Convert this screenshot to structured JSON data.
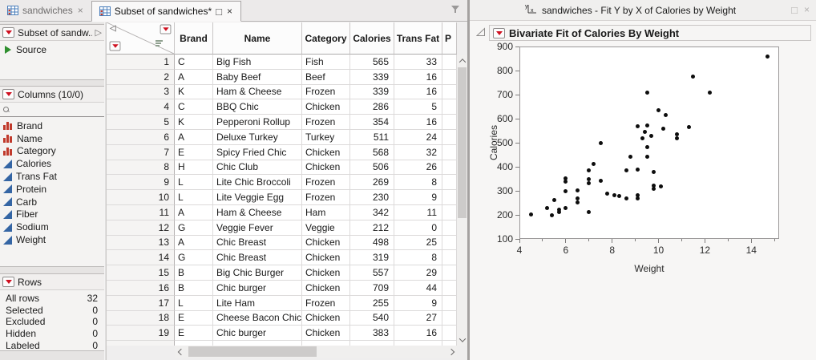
{
  "glyphs": {
    "close": "×",
    "maximize": "□",
    "panel_expand": "▷",
    "corner_collapse": "◁"
  },
  "left_window": {
    "tabs": [
      {
        "label": "sandwiches",
        "active": false
      },
      {
        "label": "Subset of sandwiches*",
        "active": true
      }
    ],
    "panels": {
      "table_panel": {
        "title": "Subset of sandw...",
        "source_label": "Source"
      },
      "columns_panel": {
        "title": "Columns (10/0)",
        "search_placeholder": "",
        "columns": [
          {
            "name": "Brand",
            "type": "nominal"
          },
          {
            "name": "Name",
            "type": "nominal"
          },
          {
            "name": "Category",
            "type": "nominal"
          },
          {
            "name": "Calories",
            "type": "continuous"
          },
          {
            "name": "Trans Fat",
            "type": "continuous"
          },
          {
            "name": "Protein",
            "type": "continuous"
          },
          {
            "name": "Carb",
            "type": "continuous"
          },
          {
            "name": "Fiber",
            "type": "continuous"
          },
          {
            "name": "Sodium",
            "type": "continuous"
          },
          {
            "name": "Weight",
            "type": "continuous"
          }
        ]
      },
      "rows_panel": {
        "title": "Rows",
        "stats": [
          {
            "label": "All rows",
            "value": "32"
          },
          {
            "label": "Selected",
            "value": "0"
          },
          {
            "label": "Excluded",
            "value": "0"
          },
          {
            "label": "Hidden",
            "value": "0"
          },
          {
            "label": "Labeled",
            "value": "0"
          }
        ]
      }
    },
    "table": {
      "headers": [
        "Brand",
        "Name",
        "Category",
        "Calories",
        "Trans Fat",
        "P"
      ],
      "rows": [
        [
          "1",
          "C",
          "Big Fish",
          "Fish",
          "565",
          "33"
        ],
        [
          "2",
          "A",
          "Baby Beef",
          "Beef",
          "339",
          "16"
        ],
        [
          "3",
          "K",
          "Ham & Cheese",
          "Frozen",
          "339",
          "16"
        ],
        [
          "4",
          "C",
          "BBQ Chic",
          "Chicken",
          "286",
          "5"
        ],
        [
          "5",
          "K",
          "Pepperoni Rollup",
          "Frozen",
          "354",
          "16"
        ],
        [
          "6",
          "A",
          "Deluxe Turkey",
          "Turkey",
          "511",
          "24"
        ],
        [
          "7",
          "E",
          "Spicy Fried Chic",
          "Chicken",
          "568",
          "32"
        ],
        [
          "8",
          "H",
          "Chic Club",
          "Chicken",
          "506",
          "26"
        ],
        [
          "9",
          "L",
          "Lite Chic Broccoli",
          "Frozen",
          "269",
          "8"
        ],
        [
          "10",
          "L",
          "Lite Veggie Egg",
          "Frozen",
          "230",
          "9"
        ],
        [
          "11",
          "A",
          "Ham & Cheese",
          "Ham",
          "342",
          "11"
        ],
        [
          "12",
          "G",
          "Veggie Fever",
          "Veggie",
          "212",
          "0"
        ],
        [
          "13",
          "A",
          "Chic Breast",
          "Chicken",
          "498",
          "25"
        ],
        [
          "14",
          "G",
          "Chic Breast",
          "Chicken",
          "319",
          "8"
        ],
        [
          "15",
          "B",
          "Big Chic Burger",
          "Chicken",
          "557",
          "29"
        ],
        [
          "16",
          "B",
          "Chic burger",
          "Chicken",
          "709",
          "44"
        ],
        [
          "17",
          "L",
          "Lite Ham",
          "Frozen",
          "255",
          "9"
        ],
        [
          "18",
          "E",
          "Cheese Bacon Chic",
          "Chicken",
          "540",
          "27"
        ],
        [
          "19",
          "E",
          "Chic burger",
          "Chicken",
          "383",
          "16"
        ]
      ]
    }
  },
  "right_window": {
    "title": "sandwiches - Fit Y by X of Calories by Weight",
    "report_title": "Bivariate Fit of Calories By Weight"
  },
  "chart_data": {
    "type": "scatter",
    "title": "Bivariate Fit of Calories By Weight",
    "xlabel": "Weight",
    "ylabel": "Calories",
    "xlim": [
      4,
      15.2
    ],
    "ylim": [
      100,
      900
    ],
    "x_ticks": [
      4,
      6,
      8,
      10,
      12,
      14
    ],
    "x_minor_ticks": [
      5,
      7,
      9,
      11,
      13,
      15
    ],
    "y_ticks": [
      100,
      200,
      300,
      400,
      500,
      600,
      700,
      800,
      900
    ],
    "grid": false,
    "marker_color": "#0d0d0d",
    "points": [
      [
        4.5,
        203
      ],
      [
        5.2,
        230
      ],
      [
        5.4,
        200
      ],
      [
        5.7,
        222
      ],
      [
        5.7,
        212
      ],
      [
        5.5,
        262
      ],
      [
        6.0,
        228
      ],
      [
        6.0,
        300
      ],
      [
        6.0,
        340
      ],
      [
        6.0,
        353
      ],
      [
        6.5,
        303
      ],
      [
        6.5,
        268
      ],
      [
        6.5,
        252
      ],
      [
        7.0,
        212
      ],
      [
        7.0,
        333
      ],
      [
        7.0,
        350
      ],
      [
        7.0,
        385
      ],
      [
        7.2,
        413
      ],
      [
        7.5,
        342
      ],
      [
        7.5,
        498
      ],
      [
        7.8,
        287
      ],
      [
        8.1,
        283
      ],
      [
        8.3,
        277
      ],
      [
        8.6,
        267
      ],
      [
        8.6,
        385
      ],
      [
        8.8,
        443
      ],
      [
        9.1,
        283
      ],
      [
        9.1,
        270
      ],
      [
        9.1,
        388
      ],
      [
        9.1,
        567
      ],
      [
        9.3,
        517
      ],
      [
        9.4,
        545
      ],
      [
        9.5,
        572
      ],
      [
        9.5,
        710
      ],
      [
        9.5,
        483
      ],
      [
        9.5,
        443
      ],
      [
        9.7,
        528
      ],
      [
        9.8,
        380
      ],
      [
        9.8,
        322
      ],
      [
        9.8,
        310
      ],
      [
        10.1,
        320
      ],
      [
        10.0,
        635
      ],
      [
        10.3,
        615
      ],
      [
        10.2,
        558
      ],
      [
        10.8,
        535
      ],
      [
        10.8,
        520
      ],
      [
        11.3,
        565
      ],
      [
        11.5,
        775
      ],
      [
        12.2,
        710
      ],
      [
        14.7,
        860
      ]
    ]
  }
}
